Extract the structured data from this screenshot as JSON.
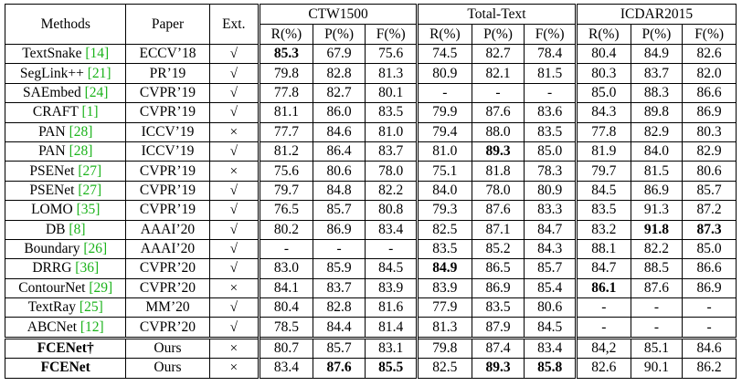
{
  "table": {
    "header": {
      "methods": "Methods",
      "paper": "Paper",
      "ext": "Ext.",
      "groups": [
        "CTW1500",
        "Total-Text",
        "ICDAR2015"
      ],
      "metrics": [
        "R(%)",
        "P(%)",
        "F(%)",
        "R(%)",
        "P(%)",
        "F(%)",
        "R(%)",
        "P(%)",
        "F(%)"
      ]
    },
    "rows": [
      {
        "method": "TextSnake",
        "ref": "[14]",
        "paper": "ECCV’18",
        "ext": "√",
        "values": [
          "85.3",
          "67.9",
          "75.6",
          "74.5",
          "82.7",
          "78.4",
          "80.4",
          "84.9",
          "82.6"
        ],
        "bold": [
          0
        ]
      },
      {
        "method": "SegLink++",
        "ref": "[21]",
        "paper": "PR’19",
        "ext": "√",
        "values": [
          "79.8",
          "82.8",
          "81.3",
          "80.9",
          "82.1",
          "81.5",
          "80.3",
          "83.7",
          "82.0"
        ],
        "bold": []
      },
      {
        "method": "SAEmbed",
        "ref": "[24]",
        "paper": "CVPR’19",
        "ext": "√",
        "values": [
          "77.8",
          "82.7",
          "80.1",
          "-",
          "-",
          "-",
          "85.0",
          "88.3",
          "86.6"
        ],
        "bold": []
      },
      {
        "method": "CRAFT",
        "ref": "[1]",
        "paper": "CVPR’19",
        "ext": "√",
        "values": [
          "81.1",
          "86.0",
          "83.5",
          "79.9",
          "87.6",
          "83.6",
          "84.3",
          "89.8",
          "86.9"
        ],
        "bold": []
      },
      {
        "method": "PAN",
        "ref": "[28]",
        "paper": "ICCV’19",
        "ext": "×",
        "values": [
          "77.7",
          "84.6",
          "81.0",
          "79.4",
          "88.0",
          "83.5",
          "77.8",
          "82.9",
          "80.3"
        ],
        "bold": []
      },
      {
        "method": "PAN",
        "ref": "[28]",
        "paper": "ICCV’19",
        "ext": "√",
        "values": [
          "81.2",
          "86.4",
          "83.7",
          "81.0",
          "89.3",
          "85.0",
          "81.9",
          "84.0",
          "82.9"
        ],
        "bold": [
          4
        ]
      },
      {
        "method": "PSENet",
        "ref": "[27]",
        "paper": "CVPR’19",
        "ext": "×",
        "values": [
          "75.6",
          "80.6",
          "78.0",
          "75.1",
          "81.8",
          "78.3",
          "79.7",
          "81.5",
          "80.6"
        ],
        "bold": []
      },
      {
        "method": "PSENet",
        "ref": "[27]",
        "paper": "CVPR’19",
        "ext": "√",
        "values": [
          "79.7",
          "84.8",
          "82.2",
          "84.0",
          "78.0",
          "80.9",
          "84.5",
          "86.9",
          "85.7"
        ],
        "bold": []
      },
      {
        "method": "LOMO",
        "ref": "[35]",
        "paper": "CVPR’19",
        "ext": "√",
        "values": [
          "76.5",
          "85.7",
          "80.8",
          "79.3",
          "87.6",
          "83.3",
          "83.5",
          "91.3",
          "87.2"
        ],
        "bold": []
      },
      {
        "method": "DB",
        "ref": "[8]",
        "paper": "AAAI’20",
        "ext": "√",
        "values": [
          "80.2",
          "86.9",
          "83.4",
          "82.5",
          "87.1",
          "84.7",
          "83.2",
          "91.8",
          "87.3"
        ],
        "bold": [
          7,
          8
        ]
      },
      {
        "method": "Boundary",
        "ref": "[26]",
        "paper": "AAAI’20",
        "ext": "√",
        "values": [
          "-",
          "-",
          "-",
          "83.5",
          "85.2",
          "84.3",
          "88.1",
          "82.2",
          "85.0"
        ],
        "bold": []
      },
      {
        "method": "DRRG",
        "ref": "[36]",
        "paper": "CVPR’20",
        "ext": "√",
        "values": [
          "83.0",
          "85.9",
          "84.5",
          "84.9",
          "86.5",
          "85.7",
          "84.7",
          "88.5",
          "86.6"
        ],
        "bold": [
          3
        ]
      },
      {
        "method": "ContourNet",
        "ref": "[29]",
        "paper": "CVPR’20",
        "ext": "×",
        "values": [
          "84.1",
          "83.7",
          "83.9",
          "83.9",
          "86.9",
          "85.4",
          "86.1",
          "87.6",
          "86.9"
        ],
        "bold": [
          6
        ]
      },
      {
        "method": "TextRay",
        "ref": "[25]",
        "paper": "MM’20",
        "ext": "√",
        "values": [
          "80.4",
          "82.8",
          "81.6",
          "77.9",
          "83.5",
          "80.6",
          "-",
          "-",
          "-"
        ],
        "bold": []
      },
      {
        "method": "ABCNet",
        "ref": "[12]",
        "paper": "CVPR’20",
        "ext": "√",
        "values": [
          "78.5",
          "84.4",
          "81.4",
          "81.3",
          "87.9",
          "84.5",
          "-",
          "-",
          "-"
        ],
        "bold": []
      }
    ],
    "ours_rows": [
      {
        "method": "FCENet†",
        "paper": "Ours",
        "ext": "×",
        "values": [
          "80.7",
          "85.7",
          "83.1",
          "79.8",
          "87.4",
          "83.4",
          "84,2",
          "85.1",
          "84.6"
        ],
        "bold": []
      },
      {
        "method": "FCENet",
        "paper": "Ours",
        "ext": "×",
        "values": [
          "83.4",
          "87.6",
          "85.5",
          "82.5",
          "89.3",
          "85.8",
          "82.6",
          "90.1",
          "86.2"
        ],
        "bold": [
          1,
          2,
          4,
          5
        ]
      }
    ]
  }
}
